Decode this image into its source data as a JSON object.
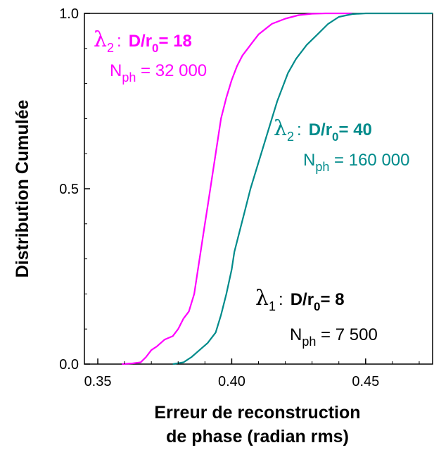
{
  "chart_data": {
    "type": "line",
    "title": "",
    "xlabel_line1": "Erreur de reconstruction",
    "xlabel_line2": "de phase (radian rms)",
    "ylabel": "Distribution Cumulée",
    "xlim": [
      0.345,
      0.475
    ],
    "ylim": [
      0.0,
      1.0
    ],
    "x_ticks": [
      {
        "value": 0.35,
        "label": "0.35"
      },
      {
        "value": 0.4,
        "label": "0.40"
      },
      {
        "value": 0.45,
        "label": "0.45"
      }
    ],
    "y_ticks": [
      {
        "value": 0.0,
        "label": "0.0"
      },
      {
        "value": 0.5,
        "label": "0.5"
      },
      {
        "value": 1.0,
        "label": "1.0"
      }
    ],
    "grid": false,
    "series": [
      {
        "color": "#ff00ff",
        "x": [
          0.359,
          0.363,
          0.366,
          0.368,
          0.37,
          0.372,
          0.375,
          0.378,
          0.38,
          0.382,
          0.384,
          0.386,
          0.387,
          0.388,
          0.389,
          0.39,
          0.391,
          0.392,
          0.393,
          0.394,
          0.395,
          0.396,
          0.398,
          0.4,
          0.402,
          0.404,
          0.406,
          0.408,
          0.41,
          0.415,
          0.42,
          0.425,
          0.43,
          0.435,
          0.44,
          0.445
        ],
        "y": [
          0.0,
          0.002,
          0.005,
          0.02,
          0.04,
          0.05,
          0.07,
          0.08,
          0.1,
          0.13,
          0.15,
          0.2,
          0.25,
          0.3,
          0.35,
          0.4,
          0.45,
          0.5,
          0.55,
          0.6,
          0.65,
          0.7,
          0.76,
          0.81,
          0.85,
          0.88,
          0.9,
          0.92,
          0.94,
          0.97,
          0.985,
          0.995,
          0.999,
          1.0,
          1.0,
          1.0
        ]
      },
      {
        "color": "#008b8b",
        "x": [
          0.378,
          0.382,
          0.385,
          0.388,
          0.391,
          0.394,
          0.396,
          0.398,
          0.4,
          0.401,
          0.403,
          0.405,
          0.407,
          0.409,
          0.411,
          0.413,
          0.415,
          0.417,
          0.419,
          0.421,
          0.424,
          0.428,
          0.432,
          0.436,
          0.44,
          0.445,
          0.45,
          0.46,
          0.47,
          0.475
        ],
        "y": [
          0.0,
          0.005,
          0.02,
          0.04,
          0.06,
          0.09,
          0.14,
          0.2,
          0.27,
          0.32,
          0.38,
          0.44,
          0.5,
          0.55,
          0.6,
          0.65,
          0.7,
          0.75,
          0.79,
          0.83,
          0.87,
          0.91,
          0.94,
          0.97,
          0.99,
          0.998,
          1.0,
          1.0,
          1.0,
          1.0
        ]
      }
    ],
    "annotations": [
      {
        "color": "#ff00ff",
        "lambda": "λ",
        "lambda_sub": "2",
        "colon": ":",
        "d_label": "D/r",
        "d_sub": "0",
        "d_value": "= 18",
        "n_label": "N",
        "n_sub": "ph",
        "n_value": " = 32 000"
      },
      {
        "color": "#008b8b",
        "lambda": "λ",
        "lambda_sub": "2",
        "colon": ":",
        "d_label": "D/r",
        "d_sub": "0",
        "d_value": "= 40",
        "n_label": "N",
        "n_sub": "ph",
        "n_value": " = 160 000"
      },
      {
        "color": "#000000",
        "lambda": "λ",
        "lambda_sub": "1",
        "colon": ":",
        "d_label": "D/r",
        "d_sub": "0",
        "d_value": "= 8",
        "n_label": "N",
        "n_sub": "ph",
        "n_value": " = 7 500"
      }
    ]
  }
}
